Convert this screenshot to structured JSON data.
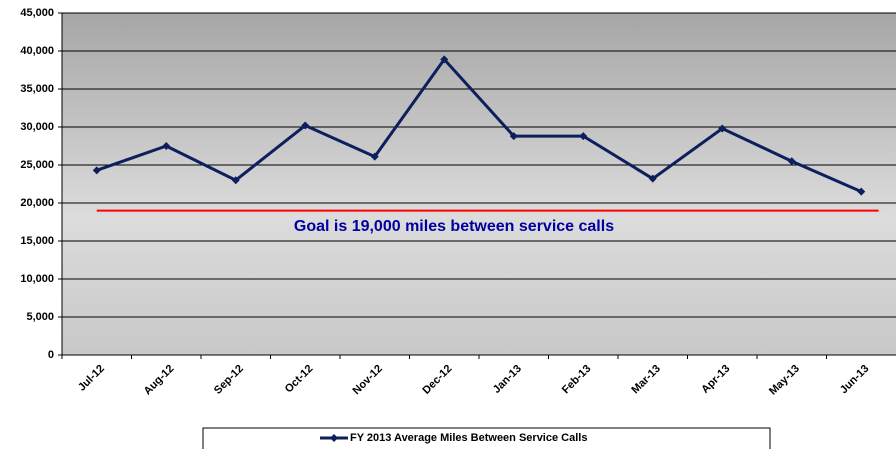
{
  "chart_data": {
    "type": "line",
    "categories": [
      "Jul-12",
      "Aug-12",
      "Sep-12",
      "Oct-12",
      "Nov-12",
      "Dec-12",
      "Jan-13",
      "Feb-13",
      "Mar-13",
      "Apr-13",
      "May-13",
      "Jun-13"
    ],
    "series": [
      {
        "name": "FY 2013 Average Miles Between Service Calls",
        "color": "#0d1f5c",
        "values": [
          24300,
          27500,
          23000,
          30200,
          26100,
          38900,
          28800,
          28800,
          23200,
          29800,
          25500,
          21500
        ]
      }
    ],
    "ylim": [
      0,
      45000
    ],
    "yticks": [
      0,
      {
        "value": 5000,
        "label": "5,000"
      },
      {
        "value": 10000,
        "label": "10,000"
      },
      {
        "value": 15000,
        "label": "15,000"
      },
      {
        "value": 20000,
        "label": "20,000"
      },
      {
        "value": 25000,
        "label": "25,000"
      },
      {
        "value": 30000,
        "label": "30,000"
      },
      {
        "value": 35000,
        "label": "35,000"
      },
      {
        "value": 40000,
        "label": "40,000"
      },
      {
        "value": 45000,
        "label": "45,000"
      }
    ],
    "grid": true,
    "goal": {
      "value": 19000,
      "label": "Goal is 19,000 miles between service calls",
      "color": "#ff0000"
    }
  }
}
